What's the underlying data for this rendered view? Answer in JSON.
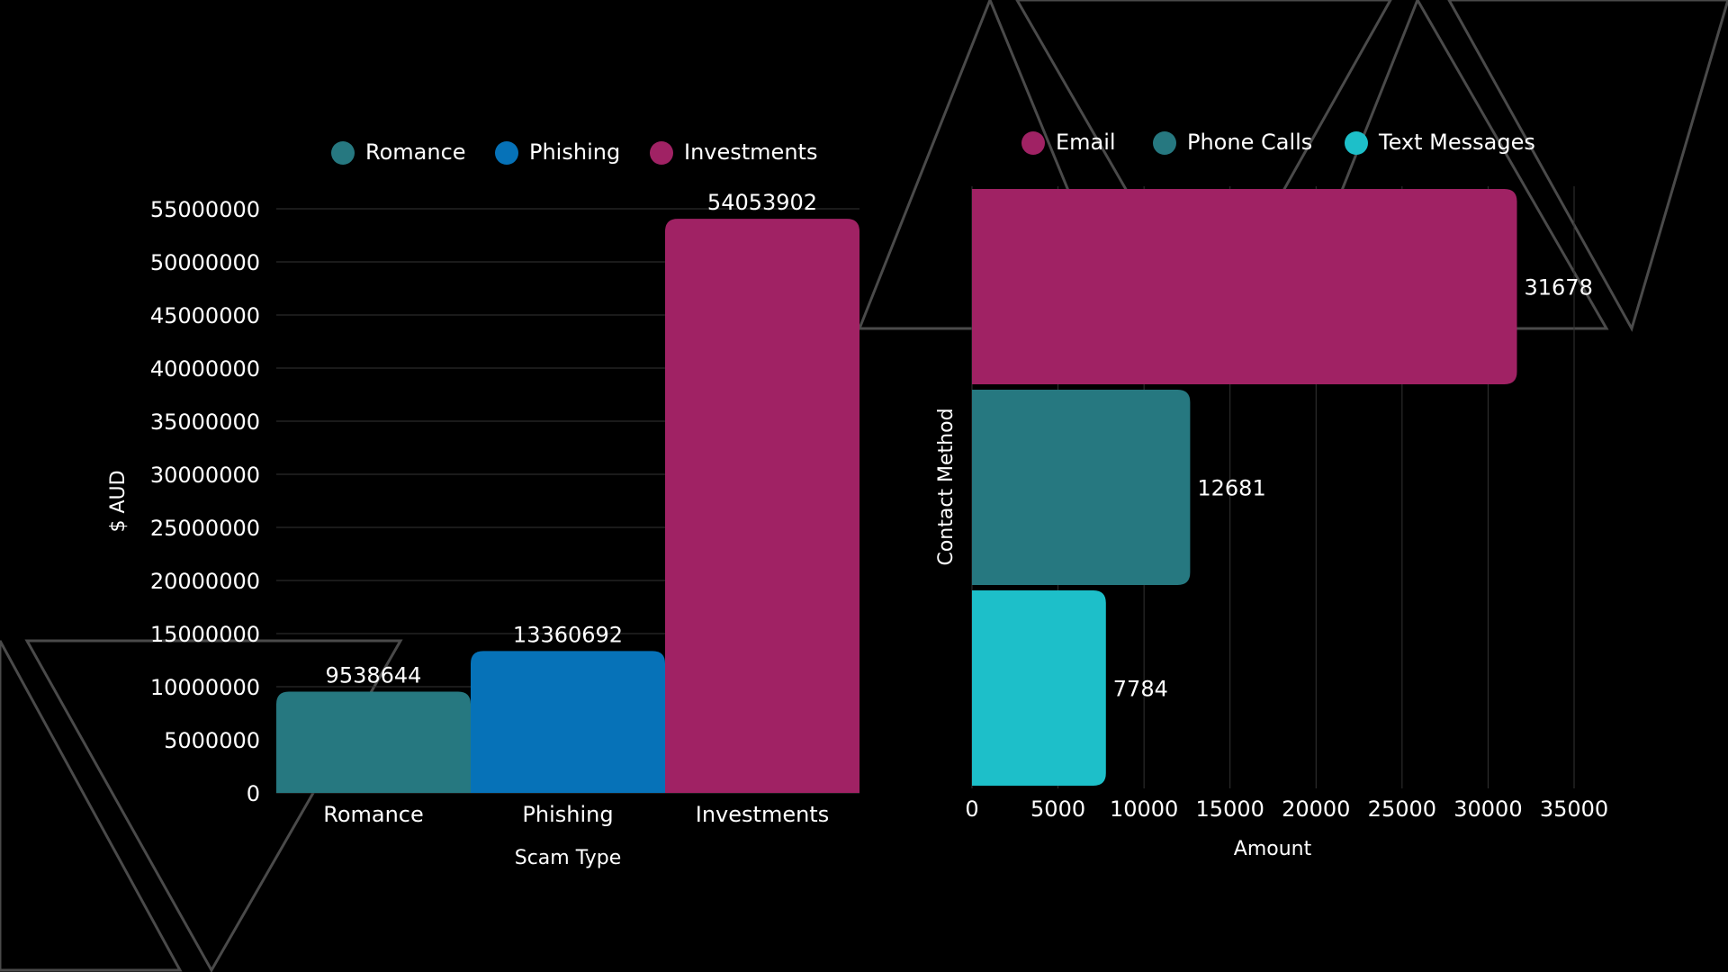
{
  "colors": {
    "background": "#000000",
    "teal": "#267880",
    "blue": "#0672B8",
    "magenta": "#A02264",
    "cyan": "#1DBFC9",
    "grid": "#333333",
    "decor_outline": "#4a4a4a"
  },
  "chart_data": [
    {
      "type": "bar",
      "orientation": "vertical",
      "categories": [
        "Romance",
        "Phishing",
        "Investments"
      ],
      "values": [
        9538644,
        13360692,
        54053902
      ],
      "bar_colors": [
        "#267880",
        "#0672B8",
        "#A02264"
      ],
      "legend": [
        "Romance",
        "Phishing",
        "Investments"
      ],
      "legend_position": "top",
      "xlabel": "Scam Type",
      "ylabel": "$ AUD",
      "ylim": [
        0,
        55000000
      ],
      "yticks": [
        0,
        5000000,
        10000000,
        15000000,
        20000000,
        25000000,
        30000000,
        35000000,
        40000000,
        45000000,
        50000000,
        55000000
      ],
      "data_labels": [
        "9538644",
        "13360692",
        "54053902"
      ],
      "grid": "horizontal"
    },
    {
      "type": "bar",
      "orientation": "horizontal",
      "categories": [
        "Email",
        "Phone Calls",
        "Text Messages"
      ],
      "values": [
        31678,
        12681,
        7784
      ],
      "bar_colors": [
        "#A02264",
        "#267880",
        "#1DBFC9"
      ],
      "legend": [
        "Email",
        "Phone Calls",
        "Text Messages"
      ],
      "legend_position": "top",
      "xlabel": "Amount",
      "ylabel": "Contact Method",
      "xlim": [
        0,
        35000
      ],
      "xticks": [
        0,
        5000,
        10000,
        15000,
        20000,
        25000,
        30000,
        35000
      ],
      "data_labels": [
        "31678",
        "12681",
        "7784"
      ],
      "grid": "vertical"
    }
  ]
}
